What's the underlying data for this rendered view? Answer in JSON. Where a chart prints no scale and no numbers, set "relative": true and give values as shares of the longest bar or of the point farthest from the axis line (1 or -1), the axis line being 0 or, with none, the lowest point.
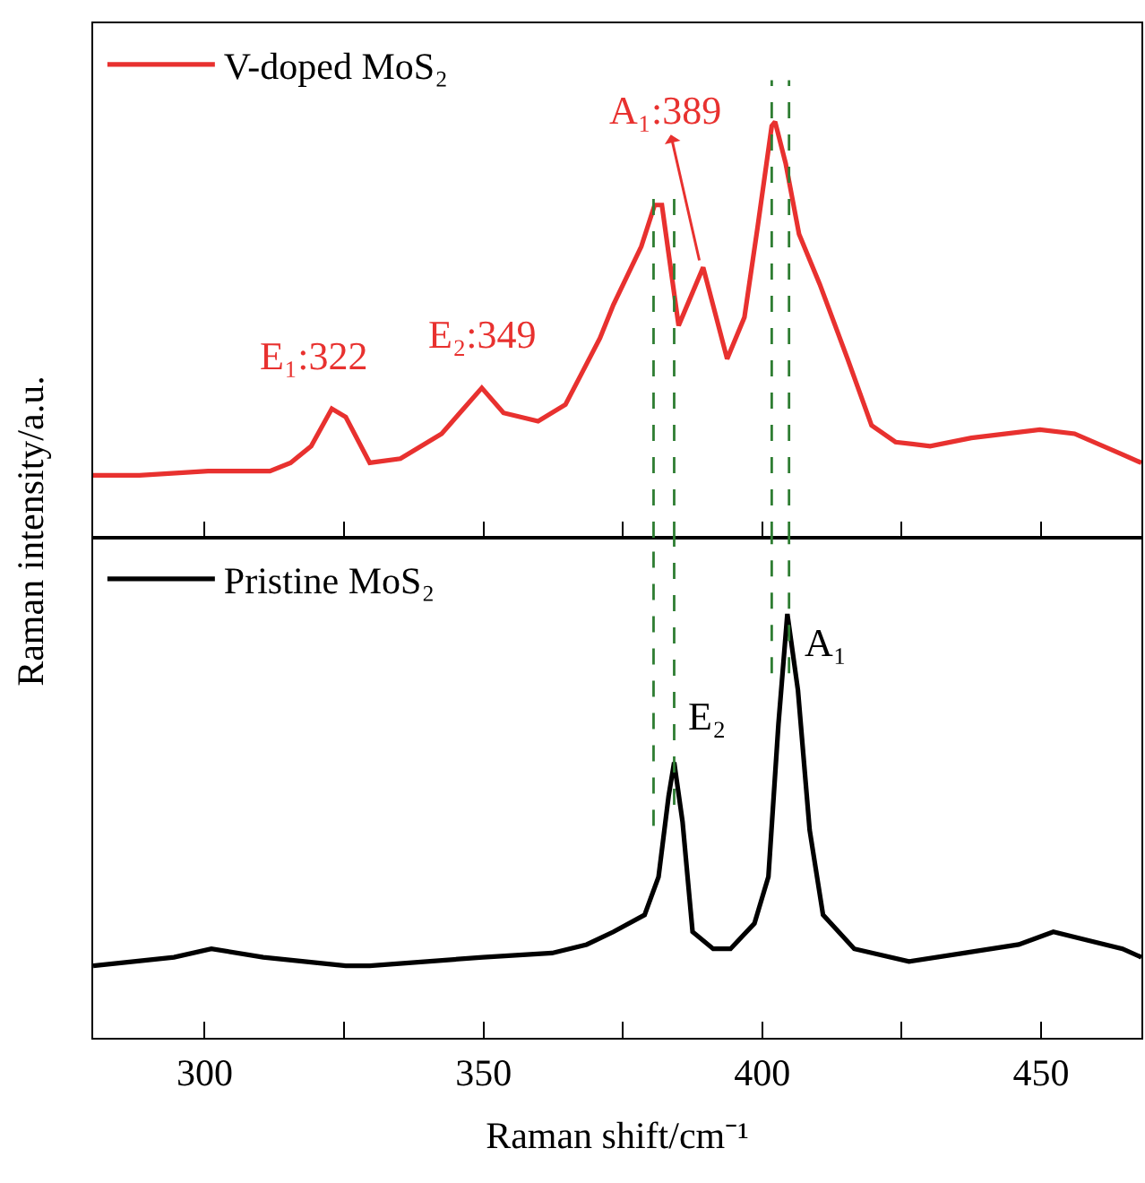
{
  "chart_data": [
    {
      "type": "line",
      "relative": true,
      "ylabel": "Raman intensity/a.u.",
      "xlim": [
        280,
        468
      ],
      "xticks": [
        300,
        {
          "value": 325,
          "label": null
        },
        350,
        {
          "value": 375,
          "label": null
        },
        400,
        {
          "value": 425,
          "label": null
        },
        450
      ],
      "tick_labels": false,
      "legend": "top left",
      "grid": false,
      "marker": "none",
      "line_style": "solid",
      "series": [
        {
          "name": "V-doped MoS₂",
          "color": "#e8312f",
          "x": [
            280.0,
            288.3,
            300.6,
            311.7,
            315.4,
            319.1,
            322.8,
            325.3,
            329.6,
            335.1,
            342.5,
            349.7,
            353.6,
            359.8,
            364.7,
            367.8,
            370.9,
            373.3,
            378.3,
            380.7,
            382.0,
            385.0,
            389.4,
            393.7,
            396.8,
            399.2,
            401.7,
            402.3,
            404.2,
            406.6,
            410.3,
            415.3,
            419.6,
            423.9,
            430.1,
            437.5,
            449.8,
            456.0,
            464.6,
            468.0
          ],
          "values": [
            0.15,
            0.15,
            0.16,
            0.16,
            0.18,
            0.22,
            0.31,
            0.29,
            0.18,
            0.19,
            0.25,
            0.36,
            0.3,
            0.28,
            0.32,
            0.4,
            0.48,
            0.56,
            0.7,
            0.8,
            0.8,
            0.51,
            0.65,
            0.43,
            0.53,
            0.75,
            0.99,
            1.0,
            0.9,
            0.73,
            0.61,
            0.43,
            0.27,
            0.23,
            0.22,
            0.24,
            0.26,
            0.25,
            0.2,
            0.18
          ]
        }
      ],
      "ref_lines": [
        {
          "axis": "x",
          "value": 380.5,
          "color": "#2e7d32",
          "line_style": "dashed"
        },
        {
          "axis": "x",
          "value": 384.2,
          "color": "#2e7d32",
          "line_style": "dashed"
        },
        {
          "axis": "x",
          "value": 401.7,
          "color": "#2e7d32",
          "line_style": "dashed"
        },
        {
          "axis": "x",
          "value": 404.8,
          "color": "#2e7d32",
          "line_style": "dashed"
        }
      ],
      "annotations": [
        {
          "text": "E₁:322",
          "x": 322,
          "y": 0.31
        },
        {
          "text": "E₂:349",
          "x": 349,
          "y": 0.36
        },
        {
          "text": "A₁:389",
          "x": 389,
          "y": 0.65
        }
      ]
    },
    {
      "type": "line",
      "relative": true,
      "xlabel": "Raman shift/cm⁻¹",
      "xlim": [
        280,
        468
      ],
      "xticks": [
        300,
        {
          "value": 325,
          "label": null
        },
        350,
        {
          "value": 375,
          "label": null
        },
        400,
        {
          "value": 425,
          "label": null
        },
        450
      ],
      "tick_labels": "x",
      "legend": "top left",
      "grid": false,
      "marker": "none",
      "line_style": "solid",
      "series": [
        {
          "name": "Pristine MoS₂",
          "color": "#000000",
          "x": [
            280.0,
            294.5,
            301.2,
            310.5,
            325.3,
            329.6,
            349.9,
            362.3,
            368.5,
            373.3,
            378.9,
            381.4,
            383.2,
            384.2,
            385.7,
            387.5,
            391.2,
            394.3,
            398.6,
            401.1,
            402.9,
            404.5,
            406.4,
            408.5,
            410.9,
            416.5,
            426.3,
            436.2,
            446.0,
            452.2,
            458.4,
            464.6,
            468.0
          ],
          "values": [
            0.17,
            0.19,
            0.21,
            0.19,
            0.17,
            0.17,
            0.19,
            0.2,
            0.22,
            0.25,
            0.29,
            0.38,
            0.57,
            0.65,
            0.51,
            0.25,
            0.21,
            0.21,
            0.27,
            0.38,
            0.74,
            1.0,
            0.82,
            0.49,
            0.29,
            0.21,
            0.18,
            0.2,
            0.22,
            0.25,
            0.23,
            0.21,
            0.19
          ]
        }
      ],
      "ref_lines": [
        {
          "axis": "x",
          "value": 380.5,
          "color": "#2e7d32",
          "line_style": "dashed"
        },
        {
          "axis": "x",
          "value": 384.2,
          "color": "#2e7d32",
          "line_style": "dashed"
        },
        {
          "axis": "x",
          "value": 401.7,
          "color": "#2e7d32",
          "line_style": "dashed"
        },
        {
          "axis": "x",
          "value": 404.8,
          "color": "#2e7d32",
          "line_style": "dashed"
        }
      ],
      "annotations": [
        {
          "text": "E₂",
          "x": 384.2,
          "y": 0.65
        },
        {
          "text": "A₁",
          "x": 404.5,
          "y": 1.0
        }
      ]
    }
  ]
}
